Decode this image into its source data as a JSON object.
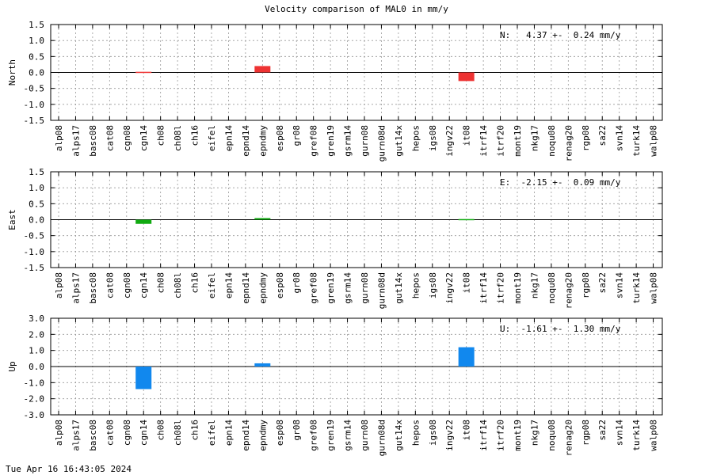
{
  "title": "Velocity comparison of MAL0 in mm/y",
  "timestamp": "Tue Apr 16 16:43:05 2024",
  "chart_data": [
    {
      "type": "bar",
      "ylabel": "North",
      "annotation": "N:   4.37 +-  0.24 mm/y",
      "ylim": [
        -1.5,
        1.5
      ],
      "yticks": [
        "1.5",
        "1.0",
        "0.5",
        "0.0",
        "-0.5",
        "-1.0",
        "-1.5"
      ],
      "grid": true,
      "color": "#ee3333",
      "categories": [
        "alp08",
        "alps17",
        "basc08",
        "cat08",
        "cgn08",
        "cgn14",
        "ch08",
        "ch08l",
        "ch16",
        "eifel",
        "epn14",
        "epnd14",
        "epndmy",
        "esp08",
        "gr08",
        "gref08",
        "gren19",
        "gsrm14",
        "gurn08",
        "gurn08d",
        "gut14x",
        "hepos",
        "igs08",
        "ingv22",
        "it08",
        "itrf14",
        "itrf20",
        "mont19",
        "nkg17",
        "noqu08",
        "renag20",
        "rgp08",
        "sa22",
        "svn14",
        "turk14",
        "walp08"
      ],
      "values": [
        0,
        0,
        0,
        0,
        0,
        0.02,
        0,
        0,
        0,
        0,
        0,
        0,
        0.2,
        0,
        0,
        0,
        0,
        0,
        0,
        0,
        0,
        0,
        0,
        0,
        -0.27,
        0,
        0,
        0,
        0,
        0,
        0,
        0,
        0,
        0,
        0,
        0
      ]
    },
    {
      "type": "bar",
      "ylabel": "East",
      "annotation": "E:  -2.15 +-  0.09 mm/y",
      "ylim": [
        -1.5,
        1.5
      ],
      "yticks": [
        "1.5",
        "1.0",
        "0.5",
        "0.0",
        "-0.5",
        "-1.0",
        "-1.5"
      ],
      "grid": true,
      "color": "#11aa11",
      "categories": [
        "alp08",
        "alps17",
        "basc08",
        "cat08",
        "cgn08",
        "cgn14",
        "ch08",
        "ch08l",
        "ch16",
        "eifel",
        "epn14",
        "epnd14",
        "epndmy",
        "esp08",
        "gr08",
        "gref08",
        "gren19",
        "gsrm14",
        "gurn08",
        "gurn08d",
        "gut14x",
        "hepos",
        "igs08",
        "ingv22",
        "it08",
        "itrf14",
        "itrf20",
        "mont19",
        "nkg17",
        "noqu08",
        "renag20",
        "rgp08",
        "sa22",
        "svn14",
        "turk14",
        "walp08"
      ],
      "values": [
        0,
        0,
        0,
        0,
        0,
        -0.13,
        0,
        0,
        0,
        0,
        0,
        0,
        0.05,
        0,
        0,
        0,
        0,
        0,
        0,
        0,
        0,
        0,
        0,
        0,
        0.02,
        0,
        0,
        0,
        0,
        0,
        0,
        0,
        0,
        0,
        0,
        0
      ]
    },
    {
      "type": "bar",
      "ylabel": "Up",
      "annotation": "U:  -1.61 +-  1.30 mm/y",
      "ylim": [
        -3.0,
        3.0
      ],
      "yticks": [
        "3.0",
        "2.0",
        "1.0",
        "0.0",
        "-1.0",
        "-2.0",
        "-3.0"
      ],
      "grid": true,
      "color": "#1188ee",
      "categories": [
        "alp08",
        "alps17",
        "basc08",
        "cat08",
        "cgn08",
        "cgn14",
        "ch08",
        "ch08l",
        "ch16",
        "eifel",
        "epn14",
        "epnd14",
        "epndmy",
        "esp08",
        "gr08",
        "gref08",
        "gren19",
        "gsrm14",
        "gurn08",
        "gurn08d",
        "gut14x",
        "hepos",
        "igs08",
        "ingv22",
        "it08",
        "itrf14",
        "itrf20",
        "mont19",
        "nkg17",
        "noqu08",
        "renag20",
        "rgp08",
        "sa22",
        "svn14",
        "turk14",
        "walp08"
      ],
      "values": [
        0,
        0,
        0,
        0,
        0,
        -1.4,
        0,
        0,
        0,
        0,
        0,
        0,
        0.2,
        0,
        0,
        0,
        0,
        0,
        0,
        0,
        0,
        0,
        0,
        0,
        1.2,
        0,
        0,
        0,
        0,
        0,
        0,
        0,
        0,
        0,
        0,
        0
      ]
    }
  ]
}
